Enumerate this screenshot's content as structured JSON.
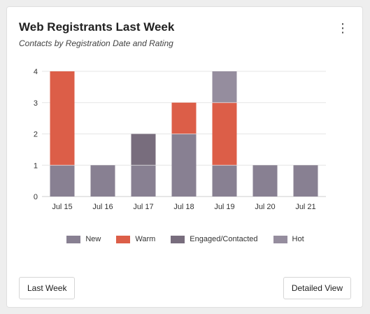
{
  "card": {
    "title": "Web Registrants Last Week",
    "subtitle": "Contacts by Registration Date and Rating",
    "menu_icon": "more-vertical-icon",
    "menu_glyph": "⋮"
  },
  "footer": {
    "left_button": "Last Week",
    "right_button": "Detailed View"
  },
  "chart_data": {
    "type": "bar",
    "stacked": true,
    "categories": [
      "Jul 15",
      "Jul 16",
      "Jul 17",
      "Jul 18",
      "Jul 19",
      "Jul 20",
      "Jul 21"
    ],
    "series": [
      {
        "name": "New",
        "color": "#888092",
        "values": [
          1,
          1,
          1,
          2,
          1,
          1,
          1
        ]
      },
      {
        "name": "Warm",
        "color": "#dc5e48",
        "values": [
          3,
          0,
          0,
          1,
          2,
          0,
          0
        ]
      },
      {
        "name": "Engaged/Contacted",
        "color": "#786d7d",
        "values": [
          0,
          0,
          1,
          0,
          0,
          0,
          0
        ]
      },
      {
        "name": "Hot",
        "color": "#958d9e",
        "values": [
          0,
          0,
          0,
          0,
          1,
          0,
          0
        ]
      }
    ],
    "ylim": [
      0,
      4
    ],
    "yticks": [
      "0",
      "1",
      "2",
      "3",
      "4"
    ],
    "grid": true,
    "legend": "bottom-center"
  }
}
